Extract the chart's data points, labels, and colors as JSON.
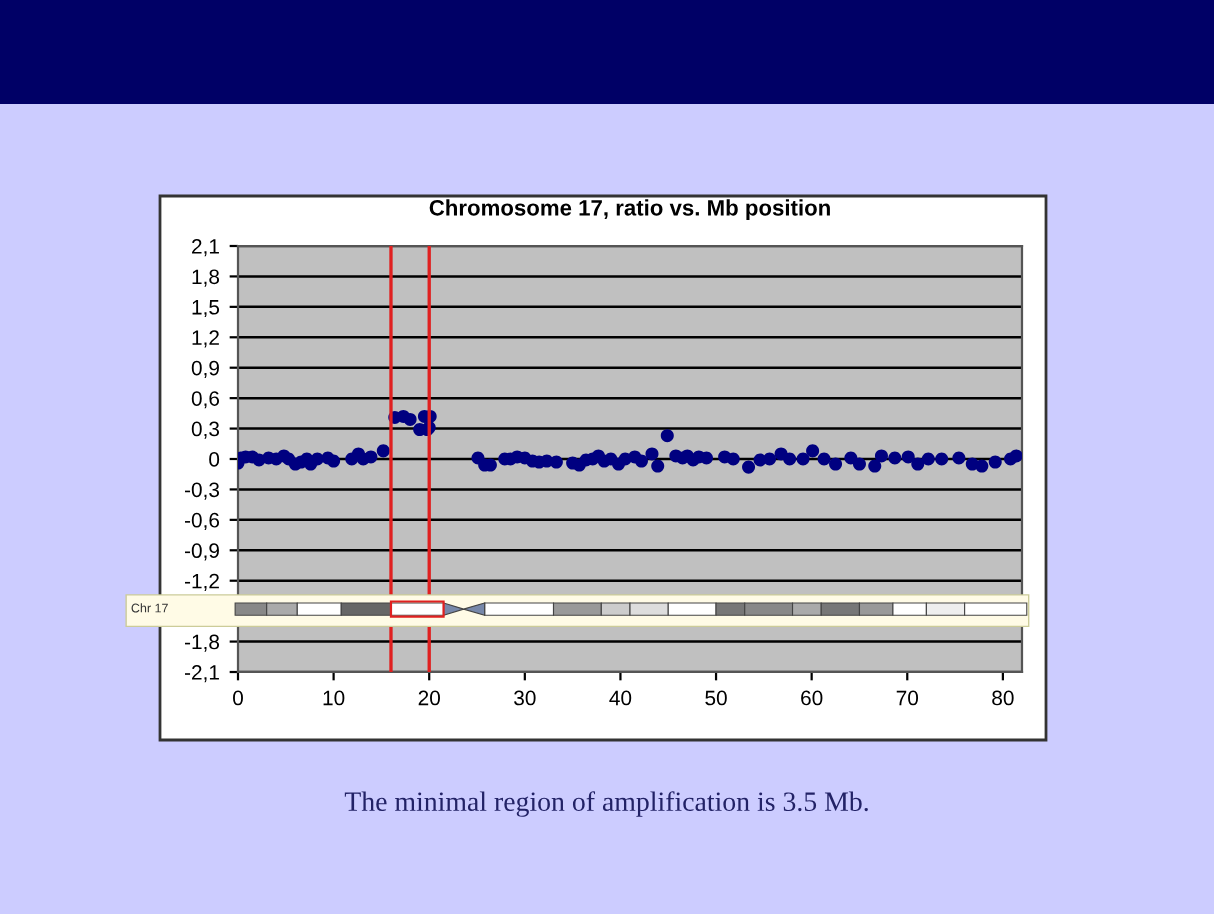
{
  "chart_data": {
    "type": "scatter",
    "title": "Chromosome 17, ratio vs. Mb position",
    "xlim": [
      0,
      82
    ],
    "xticks": [
      0,
      10,
      20,
      30,
      40,
      50,
      60,
      70,
      80
    ],
    "ylim": [
      -2.1,
      2.1
    ],
    "yticks": [
      {
        "value": -2.1,
        "label": "-2,1"
      },
      {
        "value": -1.8,
        "label": "-1,8"
      },
      {
        "value": -1.5,
        "label": null
      },
      {
        "value": -1.2,
        "label": "-1,2"
      },
      {
        "value": -0.9,
        "label": "-0,9"
      },
      {
        "value": -0.6,
        "label": "-0,6"
      },
      {
        "value": -0.3,
        "label": "-0,3"
      },
      0,
      {
        "value": 0.3,
        "label": "0,3"
      },
      {
        "value": 0.6,
        "label": "0,6"
      },
      {
        "value": 0.9,
        "label": "0,9"
      },
      {
        "value": 1.2,
        "label": "1,2"
      },
      {
        "value": 1.5,
        "label": "1,5"
      },
      {
        "value": 1.8,
        "label": "1,8"
      },
      {
        "value": 2.1,
        "label": "2,1"
      }
    ],
    "grid": "y",
    "marker": "circle",
    "legend": false,
    "series": [
      {
        "color": "#000080",
        "x": [
          0,
          0.3,
          0.8,
          1.5,
          2.2,
          3.2,
          4,
          4.8,
          5.3,
          6,
          6.6,
          7.2,
          7.6,
          8.3,
          9.4,
          10,
          11.9,
          12.6,
          13.1,
          13.9,
          15.2,
          16.4,
          17.3,
          18,
          19,
          19.5,
          19.8,
          20.1,
          20,
          25.1,
          25.8,
          26.4,
          27.9,
          28.5,
          29.2,
          30,
          30.8,
          31.5,
          32.3,
          33.3,
          35,
          35.7,
          36.4,
          37.1,
          37.7,
          38.3,
          39,
          39.8,
          40.5,
          41.5,
          42.2,
          43.3,
          43.9,
          44.9,
          45.8,
          46.5,
          47,
          47.6,
          48.2,
          49,
          50.9,
          51.8,
          53.4,
          54.6,
          55.6,
          56.8,
          57.7,
          59.1,
          60.1,
          61.3,
          62.5,
          64.1,
          65,
          66.6,
          67.3,
          68.7,
          70.1,
          71.1,
          72.2,
          73.6,
          75.4,
          76.8,
          77.8,
          79.2,
          80.8,
          81.4
        ],
        "values": [
          -0.04,
          0.01,
          0.02,
          0.02,
          -0.01,
          0.01,
          0,
          0.03,
          0,
          -0.05,
          -0.03,
          0,
          -0.05,
          0,
          0.01,
          -0.02,
          0,
          0.05,
          0,
          0.02,
          0.08,
          0.41,
          0.42,
          0.39,
          0.29,
          0.42,
          0.29,
          0.42,
          0.31,
          0.01,
          -0.06,
          -0.06,
          0,
          0,
          0.02,
          0.01,
          -0.02,
          -0.03,
          -0.02,
          -0.03,
          -0.04,
          -0.06,
          -0.01,
          0,
          0.03,
          -0.02,
          0,
          -0.05,
          0,
          0.02,
          -0.02,
          0.05,
          -0.07,
          0.23,
          0.03,
          0.01,
          0.03,
          -0.01,
          0.02,
          0.01,
          0.02,
          0,
          -0.08,
          -0.01,
          0,
          0.05,
          0,
          0,
          0.08,
          0,
          -0.05,
          0.01,
          -0.05,
          -0.07,
          0.03,
          0.01,
          0.02,
          -0.05,
          0,
          0,
          0.01,
          -0.05,
          -0.07,
          -0.03,
          0,
          0.03
        ]
      }
    ],
    "ref_lines": [
      {
        "axis": "x",
        "value": 16,
        "color": "#e02020"
      },
      {
        "axis": "x",
        "value": 20,
        "color": "#e02020"
      }
    ],
    "annotations": [
      "Chr 17",
      "The minimal region of amplification is 3.5 Mb."
    ]
  }
}
